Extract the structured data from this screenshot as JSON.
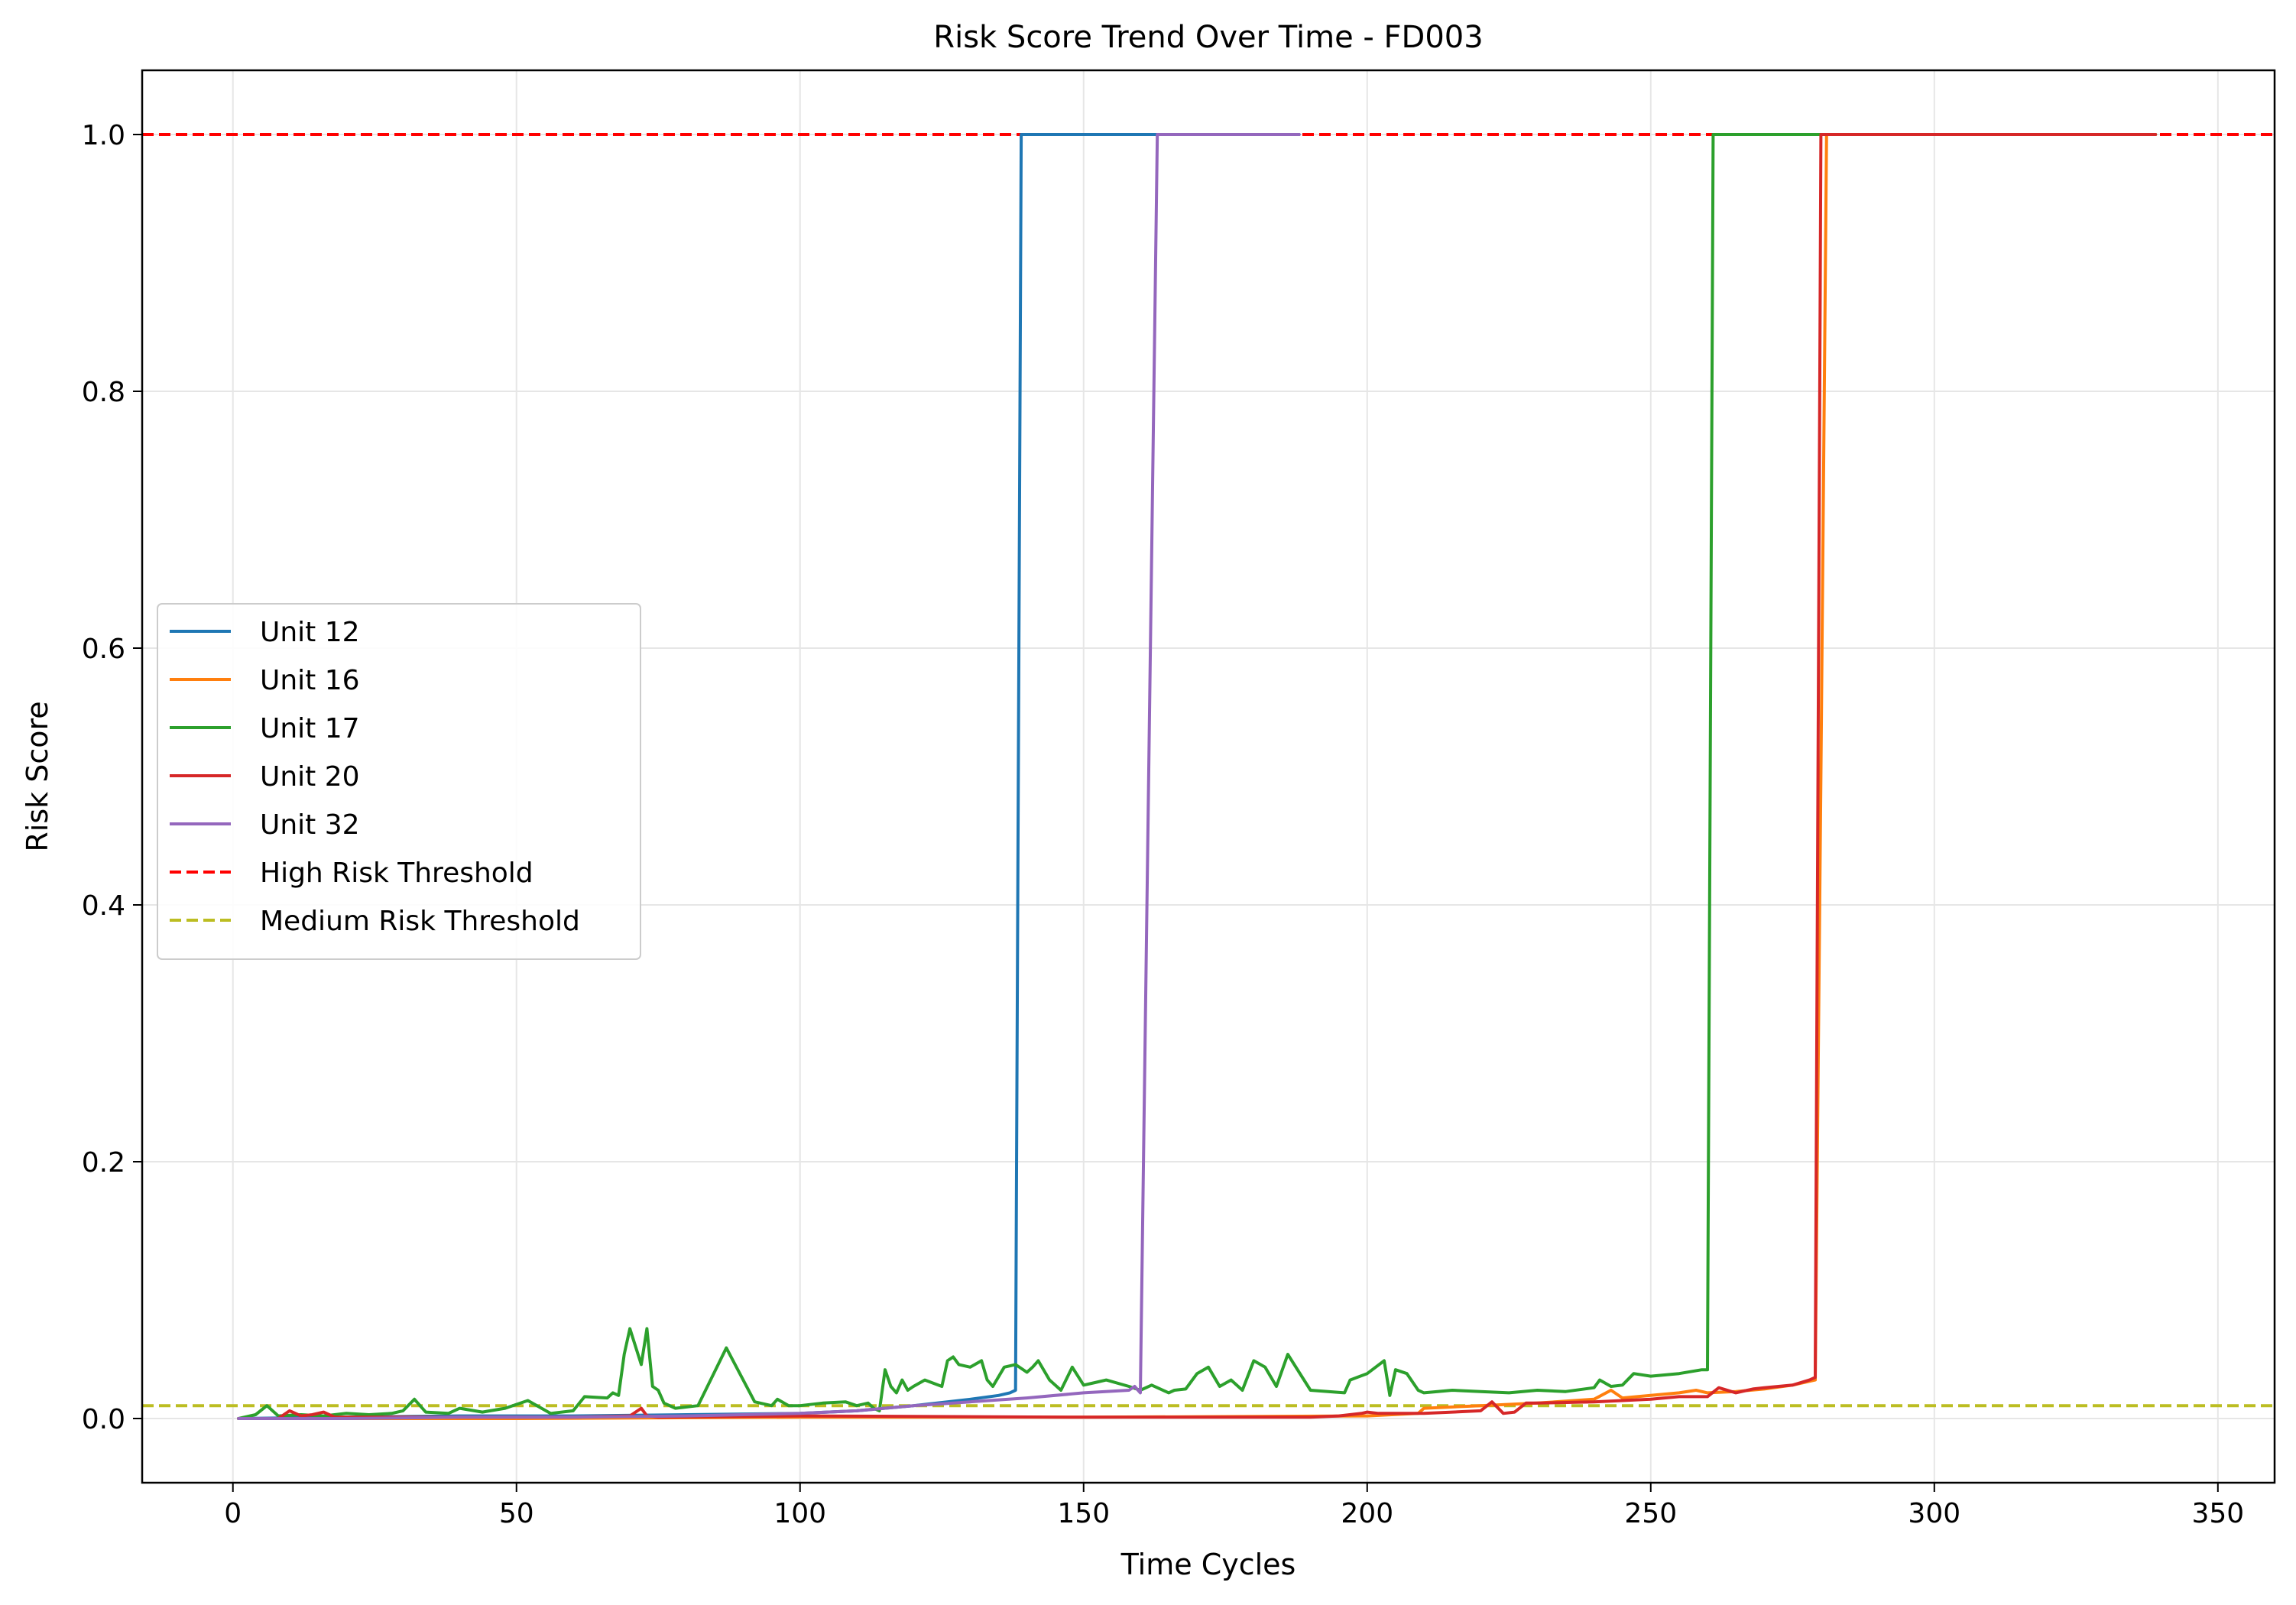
{
  "chart_data": {
    "type": "line",
    "title": "Risk Score Trend Over Time - FD003",
    "xlabel": "Time Cycles",
    "ylabel": "Risk Score",
    "xlim": [
      -16,
      360
    ],
    "ylim": [
      -0.05,
      1.05
    ],
    "xticks": [
      0,
      50,
      100,
      150,
      200,
      250,
      300,
      350
    ],
    "yticks": [
      0.0,
      0.2,
      0.4,
      0.6,
      0.8,
      1.0
    ],
    "xtick_labels": [
      "0",
      "50",
      "100",
      "150",
      "200",
      "250",
      "300",
      "350"
    ],
    "ytick_labels": [
      "0.0",
      "0.2",
      "0.4",
      "0.6",
      "0.8",
      "1.0"
    ],
    "grid": true,
    "legend_position": "center-left",
    "series": [
      {
        "name": "Unit 12",
        "color": "#1f77b4",
        "style": "solid",
        "x": [
          1,
          20,
          40,
          60,
          80,
          100,
          110,
          120,
          130,
          135,
          137,
          138,
          139,
          150,
          170,
          188
        ],
        "y": [
          0,
          0.001,
          0.002,
          0.002,
          0.003,
          0.004,
          0.006,
          0.01,
          0.015,
          0.018,
          0.02,
          0.022,
          1.0,
          1.0,
          1.0,
          1.0
        ]
      },
      {
        "name": "Unit 16",
        "color": "#ff7f0e",
        "style": "solid",
        "x": [
          1,
          50,
          100,
          150,
          200,
          209,
          210,
          220,
          230,
          240,
          243,
          245,
          250,
          255,
          258,
          260,
          265,
          270,
          275,
          279,
          280,
          281,
          300,
          320,
          339
        ],
        "y": [
          0,
          0.0,
          0.001,
          0.001,
          0.002,
          0.004,
          0.008,
          0.01,
          0.012,
          0.015,
          0.022,
          0.016,
          0.018,
          0.02,
          0.022,
          0.02,
          0.021,
          0.023,
          0.026,
          0.03,
          0.5,
          1.0,
          1.0,
          1.0,
          1.0
        ]
      },
      {
        "name": "Unit 17",
        "color": "#2ca02c",
        "style": "solid",
        "x": [
          1,
          4,
          6,
          8,
          12,
          16,
          20,
          24,
          28,
          30,
          32,
          34,
          38,
          40,
          44,
          48,
          52,
          56,
          60,
          62,
          66,
          67,
          68,
          69,
          70,
          72,
          73,
          74,
          75,
          76,
          78,
          82,
          87,
          92,
          95,
          96,
          98,
          100,
          104,
          108,
          110,
          112,
          113,
          114,
          115,
          116,
          117,
          118,
          119,
          120,
          122,
          125,
          126,
          127,
          128,
          130,
          132,
          133,
          134,
          136,
          138,
          140,
          141,
          142,
          144,
          146,
          148,
          150,
          152,
          154,
          158,
          160,
          162,
          165,
          166,
          168,
          170,
          172,
          174,
          176,
          178,
          180,
          182,
          184,
          186,
          190,
          196,
          197,
          200,
          203,
          204,
          205,
          207,
          209,
          210,
          215,
          220,
          225,
          230,
          235,
          240,
          241,
          243,
          245,
          247,
          250,
          255,
          259,
          260,
          261,
          270,
          280,
          300,
          320,
          339
        ],
        "y": [
          0,
          0.003,
          0.01,
          0.002,
          0.003,
          0.002,
          0.004,
          0.003,
          0.004,
          0.006,
          0.015,
          0.005,
          0.004,
          0.008,
          0.005,
          0.008,
          0.014,
          0.004,
          0.006,
          0.017,
          0.016,
          0.02,
          0.018,
          0.05,
          0.07,
          0.042,
          0.07,
          0.025,
          0.022,
          0.012,
          0.008,
          0.01,
          0.055,
          0.013,
          0.01,
          0.015,
          0.01,
          0.01,
          0.012,
          0.013,
          0.01,
          0.012,
          0.008,
          0.006,
          0.038,
          0.025,
          0.02,
          0.03,
          0.022,
          0.025,
          0.03,
          0.025,
          0.045,
          0.048,
          0.042,
          0.04,
          0.045,
          0.03,
          0.025,
          0.04,
          0.042,
          0.036,
          0.04,
          0.045,
          0.03,
          0.022,
          0.04,
          0.026,
          0.028,
          0.03,
          0.025,
          0.022,
          0.026,
          0.02,
          0.022,
          0.023,
          0.035,
          0.04,
          0.025,
          0.03,
          0.022,
          0.045,
          0.04,
          0.025,
          0.05,
          0.022,
          0.02,
          0.03,
          0.035,
          0.045,
          0.018,
          0.038,
          0.035,
          0.022,
          0.02,
          0.022,
          0.021,
          0.02,
          0.022,
          0.021,
          0.024,
          0.03,
          0.025,
          0.026,
          0.035,
          0.033,
          0.035,
          0.038,
          0.038,
          1.0,
          1.0,
          1.0,
          1.0,
          1.0,
          1.0
        ]
      },
      {
        "name": "Unit 20",
        "color": "#d62728",
        "style": "solid",
        "x": [
          1,
          8,
          10,
          12,
          14,
          16,
          18,
          20,
          40,
          60,
          70,
          72,
          73,
          75,
          100,
          150,
          190,
          195,
          199,
          200,
          202,
          210,
          215,
          220,
          222,
          224,
          226,
          228,
          230,
          240,
          250,
          255,
          260,
          262,
          265,
          268,
          270,
          275,
          278,
          279,
          280,
          290,
          300,
          320,
          339
        ],
        "y": [
          0,
          0.0,
          0.006,
          0.002,
          0.003,
          0.005,
          0.001,
          0.001,
          0.001,
          0.001,
          0.002,
          0.008,
          0.002,
          0.001,
          0.002,
          0.001,
          0.001,
          0.002,
          0.004,
          0.005,
          0.004,
          0.004,
          0.005,
          0.006,
          0.013,
          0.004,
          0.005,
          0.012,
          0.012,
          0.013,
          0.015,
          0.017,
          0.017,
          0.024,
          0.02,
          0.023,
          0.024,
          0.026,
          0.03,
          0.032,
          1.0,
          1.0,
          1.0,
          1.0,
          1.0
        ]
      },
      {
        "name": "Unit 32",
        "color": "#9467bd",
        "style": "solid",
        "x": [
          1,
          20,
          40,
          60,
          80,
          100,
          110,
          120,
          130,
          140,
          150,
          158,
          159,
          160,
          163,
          170,
          180,
          188
        ],
        "y": [
          0,
          0.0,
          0.001,
          0.001,
          0.002,
          0.004,
          0.006,
          0.01,
          0.013,
          0.016,
          0.02,
          0.022,
          0.025,
          0.02,
          1.0,
          1.0,
          1.0,
          1.0
        ]
      }
    ],
    "thresholds": [
      {
        "name": "High Risk Threshold",
        "value": 1.0,
        "color": "#ff0000",
        "style": "dashed"
      },
      {
        "name": "Medium Risk Threshold",
        "value": 0.01,
        "color": "#bcbd22",
        "style": "dashed"
      }
    ]
  }
}
